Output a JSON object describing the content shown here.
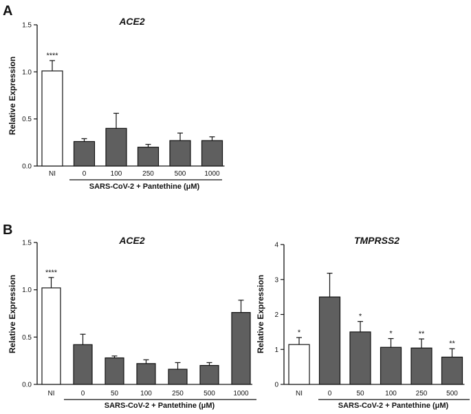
{
  "panels": {
    "a": "A",
    "b": "B"
  },
  "colors": {
    "ni_fill": "#ffffff",
    "infected_fill": "#5f5f5f",
    "stroke": "#111111"
  },
  "chart_data": [
    {
      "type": "bar",
      "title": "ACE2",
      "ylabel": "Relative Expression",
      "xlabel": "",
      "group_label": "SARS-CoV-2 + Pantethine (μM)",
      "ylim": [
        0,
        1.5
      ],
      "yticks": [
        0.0,
        0.5,
        1.0,
        1.5
      ],
      "ytick_labels": [
        "0.0",
        "0.5",
        "1.0",
        "1.5"
      ],
      "categories": [
        "NI",
        "0",
        "100",
        "250",
        "500",
        "1000"
      ],
      "values": [
        1.01,
        0.26,
        0.4,
        0.2,
        0.27,
        0.27
      ],
      "errors": [
        0.11,
        0.03,
        0.16,
        0.03,
        0.08,
        0.04
      ],
      "significance": [
        "****",
        "",
        "",
        "",
        "",
        ""
      ],
      "legend": "none",
      "grid": false
    },
    {
      "type": "bar",
      "title": "ACE2",
      "ylabel": "Relative Expression",
      "xlabel": "",
      "group_label": "SARS-CoV-2 + Pantethine (μM)",
      "ylim": [
        0,
        1.5
      ],
      "yticks": [
        0.0,
        0.5,
        1.0,
        1.5
      ],
      "ytick_labels": [
        "0.0",
        "0.5",
        "1.0",
        "1.5"
      ],
      "categories": [
        "NI",
        "0",
        "50",
        "100",
        "250",
        "500",
        "1000"
      ],
      "values": [
        1.02,
        0.42,
        0.28,
        0.22,
        0.16,
        0.2,
        0.76
      ],
      "errors": [
        0.11,
        0.11,
        0.02,
        0.04,
        0.07,
        0.03,
        0.13
      ],
      "significance": [
        "****",
        "",
        "",
        "",
        "",
        "",
        ""
      ],
      "legend": "none",
      "grid": false
    },
    {
      "type": "bar",
      "title": "TMPRSS2",
      "ylabel": "Relative Expression",
      "xlabel": "",
      "group_label": "SARS-CoV-2 + Pantethine (μM)",
      "ylim": [
        0,
        4
      ],
      "yticks": [
        0,
        1,
        2,
        3,
        4
      ],
      "ytick_labels": [
        "0",
        "1",
        "2",
        "3",
        "4"
      ],
      "categories": [
        "NI",
        "0",
        "50",
        "100",
        "250",
        "500"
      ],
      "values": [
        1.14,
        2.5,
        1.5,
        1.06,
        1.04,
        0.78
      ],
      "errors": [
        0.2,
        0.68,
        0.3,
        0.25,
        0.26,
        0.24
      ],
      "significance": [
        "*",
        "",
        "*",
        "*",
        "**",
        "**"
      ],
      "legend": "none",
      "grid": false
    }
  ]
}
